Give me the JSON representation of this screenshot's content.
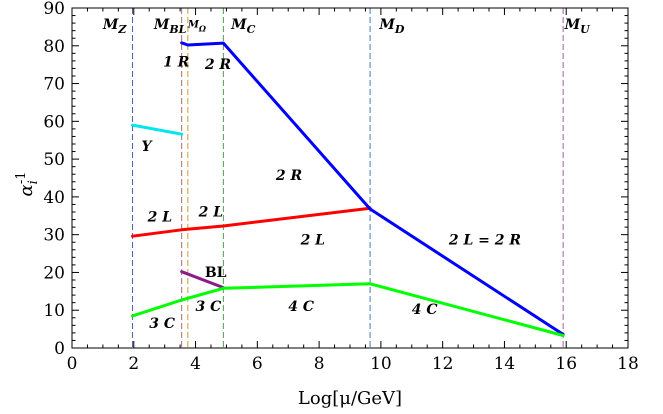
{
  "chart_data": {
    "type": "line",
    "xlabel": "Log[μ/GeV]",
    "ylabel": "α_i^-1",
    "xlim": [
      0,
      18
    ],
    "ylim": [
      0,
      90
    ],
    "xticks": [
      0,
      2,
      4,
      6,
      8,
      10,
      12,
      14,
      16,
      18
    ],
    "yticks": [
      0,
      10,
      20,
      30,
      40,
      50,
      60,
      70,
      80,
      90
    ],
    "grid": false,
    "legend": "none",
    "vlines": [
      {
        "label": "M_Z",
        "x": 1.96,
        "color": "#4b5fb0"
      },
      {
        "label": "M_BL",
        "x": 3.55,
        "color": "#b06a6a"
      },
      {
        "label": "M_Ω",
        "x": 3.75,
        "color": "#c9a030"
      },
      {
        "label": "M_C",
        "x": 4.9,
        "color": "#4f9a4f"
      },
      {
        "label": "M_D",
        "x": 9.65,
        "color": "#4b78b0"
      },
      {
        "label": "M_U",
        "x": 15.9,
        "color": "#a060a0"
      }
    ],
    "series": [
      {
        "color": "#00e5ee",
        "points": [
          [
            1.96,
            59.0
          ],
          [
            3.55,
            56.6
          ]
        ]
      },
      {
        "color": "#ff0000",
        "points": [
          [
            1.96,
            29.6
          ],
          [
            3.55,
            31.3
          ],
          [
            4.9,
            32.3
          ],
          [
            9.65,
            37.0
          ]
        ]
      },
      {
        "color": "#0000ff",
        "points": [
          [
            3.55,
            80.8
          ],
          [
            3.75,
            80.2
          ],
          [
            4.9,
            80.7
          ],
          [
            9.65,
            36.8
          ],
          [
            15.9,
            3.6
          ]
        ]
      },
      {
        "color": "#8b1a8b",
        "points": [
          [
            3.55,
            20.2
          ],
          [
            4.9,
            16.0
          ]
        ]
      },
      {
        "color": "#00ff00",
        "points": [
          [
            1.96,
            8.5
          ],
          [
            3.55,
            12.7
          ],
          [
            4.9,
            15.8
          ],
          [
            9.65,
            17.0
          ],
          [
            15.9,
            3.3
          ]
        ]
      }
    ],
    "annotations": [
      {
        "id": "mz",
        "text": "M",
        "sub": "Z",
        "x": 1.0,
        "y": 84.5,
        "small": false
      },
      {
        "id": "mbl",
        "text": "M",
        "sub": "BL",
        "x": 2.65,
        "y": 84.5,
        "small": false
      },
      {
        "id": "momega",
        "text": "M",
        "sub": "Ω",
        "x": 3.75,
        "y": 84.8,
        "small": true
      },
      {
        "id": "mc",
        "text": "M",
        "sub": "C",
        "x": 5.15,
        "y": 84.5,
        "small": false
      },
      {
        "id": "md",
        "text": "M",
        "sub": "D",
        "x": 9.95,
        "y": 84.5,
        "small": false
      },
      {
        "id": "mu",
        "text": "M",
        "sub": "U",
        "x": 15.95,
        "y": 84.5,
        "small": false
      },
      {
        "id": "r1",
        "text": "1 R",
        "x": 2.95,
        "y": 74.5
      },
      {
        "id": "r2",
        "text": "2 R",
        "x": 4.3,
        "y": 73.8
      },
      {
        "id": "r2b",
        "text": "2 R",
        "x": 6.6,
        "y": 44.5
      },
      {
        "id": "y",
        "text": "Y",
        "x": 2.25,
        "y": 52.2
      },
      {
        "id": "l2a",
        "text": "2 L",
        "x": 2.45,
        "y": 33.5
      },
      {
        "id": "l2b",
        "text": "2 L",
        "x": 4.1,
        "y": 34.8
      },
      {
        "id": "l2c",
        "text": "2 L",
        "x": 7.4,
        "y": 27.4
      },
      {
        "id": "l2r2",
        "text": "2 L = 2 R",
        "x": 12.2,
        "y": 27.4
      },
      {
        "id": "bl",
        "text": "BL",
        "x": 4.3,
        "y": 18.8,
        "upright": true
      },
      {
        "id": "c3a",
        "text": "3 C",
        "x": 2.5,
        "y": 5.3
      },
      {
        "id": "c3b",
        "text": "3 C",
        "x": 4.0,
        "y": 9.8
      },
      {
        "id": "c4a",
        "text": "4 C",
        "x": 7.0,
        "y": 9.8
      },
      {
        "id": "c4b",
        "text": "4 C",
        "x": 11.0,
        "y": 9.0
      }
    ]
  }
}
